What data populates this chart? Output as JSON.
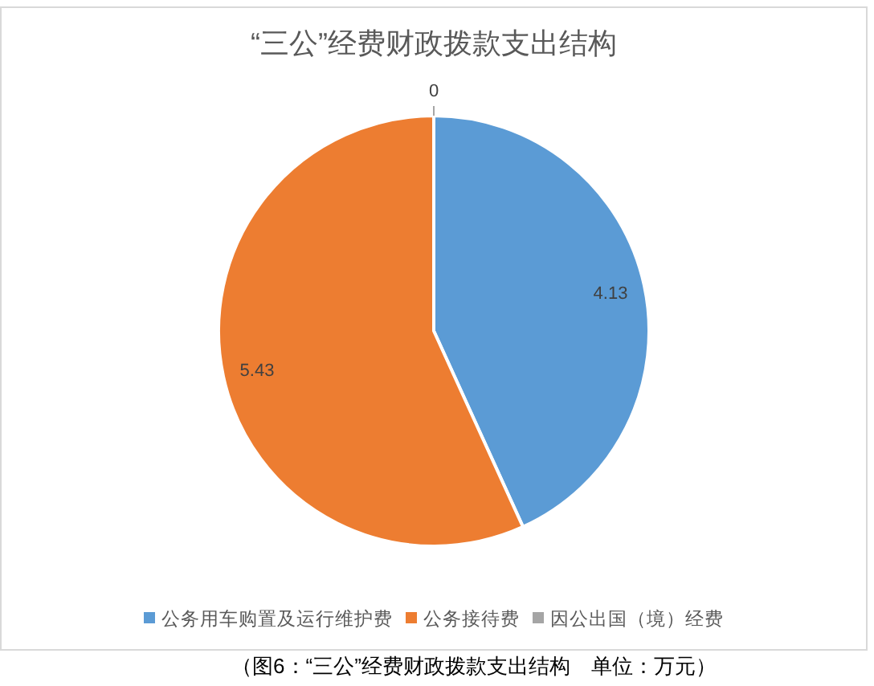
{
  "chart_data": {
    "type": "pie",
    "title": "“三公”经费财政拨款支出结构",
    "categories": [
      "公务用车购置及运行维护费",
      "公务接待费",
      "因公出国（境）经费"
    ],
    "values": [
      4.13,
      5.43,
      0
    ],
    "value_labels": [
      "4.13",
      "5.43",
      "0"
    ],
    "colors": [
      "#5b9bd5",
      "#ed7d31",
      "#a5a5a5"
    ],
    "legend": "bottom",
    "annotations": [
      "（图6：“三公”经费财政拨款支出结构　单位：万元）"
    ]
  }
}
